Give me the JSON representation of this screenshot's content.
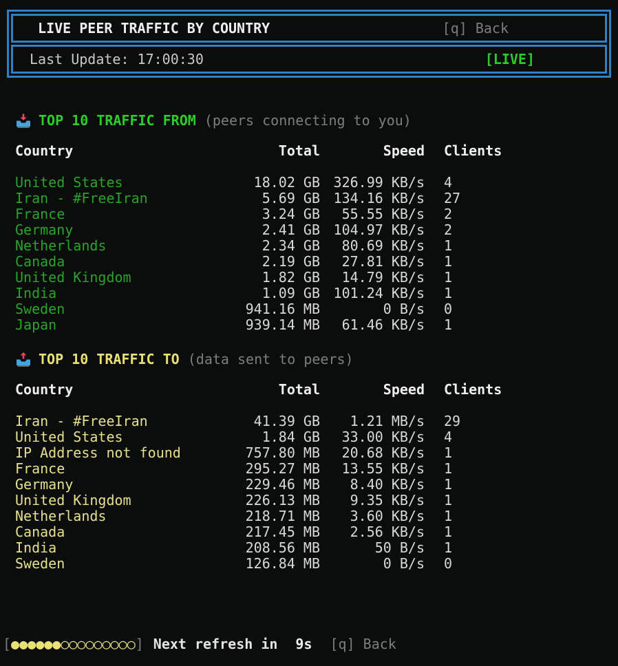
{
  "header": {
    "title": " LIVE PEER TRAFFIC BY COUNTRY",
    "back_hint": "[q] Back",
    "last_update": "Last Update: 17:00:30",
    "live_badge": "[LIVE]"
  },
  "colors": {
    "background": "#0b0c0c",
    "border_blue": "#2f81c7",
    "green_bright": "#2bcc2b",
    "green": "#28a428",
    "yellow_bright": "#e9e175",
    "yellow": "#e6e08d",
    "gray": "#7e7e7e",
    "white": "#eeeeee"
  },
  "sections": [
    {
      "icon": "inbox-tray-icon",
      "title": "TOP 10 TRAFFIC FROM",
      "subtitle": " (peers connecting to you)",
      "columns": [
        "Country",
        "Total",
        "Speed",
        "Clients"
      ],
      "rows": [
        {
          "country": "United States",
          "total": "18.02 GB",
          "speed": "326.99 KB/s",
          "clients": "4"
        },
        {
          "country": "Iran - #FreeIran",
          "total": "5.69 GB",
          "speed": "134.16 KB/s",
          "clients": "27"
        },
        {
          "country": "France",
          "total": "3.24 GB",
          "speed": "55.55 KB/s",
          "clients": "2"
        },
        {
          "country": "Germany",
          "total": "2.41 GB",
          "speed": "104.97 KB/s",
          "clients": "2"
        },
        {
          "country": "Netherlands",
          "total": "2.34 GB",
          "speed": "80.69 KB/s",
          "clients": "1"
        },
        {
          "country": "Canada",
          "total": "2.19 GB",
          "speed": "27.81 KB/s",
          "clients": "1"
        },
        {
          "country": "United Kingdom",
          "total": "1.82 GB",
          "speed": "14.79 KB/s",
          "clients": "1"
        },
        {
          "country": "India",
          "total": "1.09 GB",
          "speed": "101.24 KB/s",
          "clients": "1"
        },
        {
          "country": "Sweden",
          "total": "941.16 MB",
          "speed": "0 B/s",
          "clients": "0"
        },
        {
          "country": "Japan",
          "total": "939.14 MB",
          "speed": "61.46 KB/s",
          "clients": "1"
        }
      ]
    },
    {
      "icon": "outbox-tray-icon",
      "title": "TOP 10 TRAFFIC TO",
      "subtitle": " (data sent to peers)",
      "columns": [
        "Country",
        "Total",
        "Speed",
        "Clients"
      ],
      "rows": [
        {
          "country": "Iran - #FreeIran",
          "total": "41.39 GB",
          "speed": "1.21 MB/s",
          "clients": "29"
        },
        {
          "country": "United States",
          "total": "1.84 GB",
          "speed": "33.00 KB/s",
          "clients": "4"
        },
        {
          "country": "IP Address not found",
          "total": "757.80 MB",
          "speed": "20.68 KB/s",
          "clients": "1"
        },
        {
          "country": "France",
          "total": "295.27 MB",
          "speed": "13.55 KB/s",
          "clients": "1"
        },
        {
          "country": "Germany",
          "total": "229.46 MB",
          "speed": "8.40 KB/s",
          "clients": "1"
        },
        {
          "country": "United Kingdom",
          "total": "226.13 MB",
          "speed": "9.35 KB/s",
          "clients": "1"
        },
        {
          "country": "Netherlands",
          "total": "218.71 MB",
          "speed": "3.60 KB/s",
          "clients": "1"
        },
        {
          "country": "Canada",
          "total": "217.45 MB",
          "speed": "2.56 KB/s",
          "clients": "1"
        },
        {
          "country": "India",
          "total": "208.56 MB",
          "speed": "50 B/s",
          "clients": "1"
        },
        {
          "country": "Sweden",
          "total": "126.84 MB",
          "speed": "0 B/s",
          "clients": "0"
        }
      ]
    }
  ],
  "footer": {
    "bracket_open": "[",
    "bracket_close": "]",
    "progress_filled": 6,
    "progress_total": 15,
    "dot_filled_char": "●",
    "dot_empty_char": "○",
    "label": "Next refresh in",
    "countdown": "9s",
    "back_hint": "[q] Back"
  }
}
